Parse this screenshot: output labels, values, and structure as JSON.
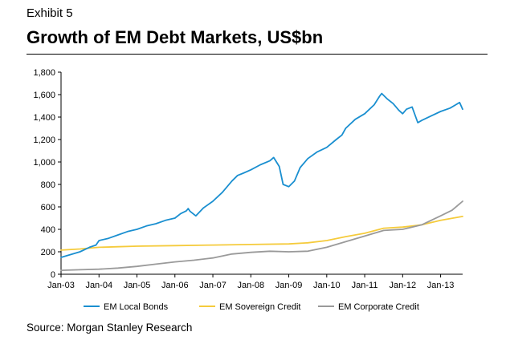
{
  "header": {
    "exhibit": "Exhibit 5",
    "title": "Growth of EM Debt Markets, US$bn"
  },
  "source": "Source: Morgan Stanley Research",
  "chart_data": {
    "type": "line",
    "title": "Growth of EM Debt Markets, US$bn",
    "xlabel": "",
    "ylabel": "",
    "ylim": [
      0,
      1800
    ],
    "yticks": [
      0,
      200,
      400,
      600,
      800,
      1000,
      1200,
      1400,
      1600,
      1800
    ],
    "ytick_labels": [
      "0",
      "200",
      "400",
      "600",
      "800",
      "1,000",
      "1,200",
      "1,400",
      "1,600",
      "1,800"
    ],
    "xlim": [
      2003.0,
      2013.58
    ],
    "xticks": [
      2003,
      2004,
      2005,
      2006,
      2007,
      2008,
      2009,
      2010,
      2011,
      2012,
      2013
    ],
    "xtick_labels": [
      "Jan-03",
      "Jan-04",
      "Jan-05",
      "Jan-06",
      "Jan-07",
      "Jan-08",
      "Jan-09",
      "Jan-10",
      "Jan-11",
      "Jan-12",
      "Jan-13"
    ],
    "legend_position": "bottom",
    "series": [
      {
        "name": "EM Local Bonds",
        "color": "#1a8fd0",
        "x": [
          2003.0,
          2003.25,
          2003.5,
          2003.75,
          2003.92,
          2004.0,
          2004.25,
          2004.5,
          2004.75,
          2005.0,
          2005.25,
          2005.5,
          2005.75,
          2006.0,
          2006.15,
          2006.3,
          2006.35,
          2006.4,
          2006.55,
          2006.75,
          2007.0,
          2007.25,
          2007.5,
          2007.65,
          2007.8,
          2008.0,
          2008.25,
          2008.5,
          2008.6,
          2008.75,
          2008.85,
          2009.0,
          2009.15,
          2009.3,
          2009.5,
          2009.75,
          2010.0,
          2010.25,
          2010.4,
          2010.5,
          2010.75,
          2011.0,
          2011.25,
          2011.4,
          2011.45,
          2011.6,
          2011.75,
          2011.9,
          2012.0,
          2012.1,
          2012.25,
          2012.4,
          2012.5,
          2012.75,
          2013.0,
          2013.25,
          2013.4,
          2013.5,
          2013.58
        ],
        "y": [
          150,
          175,
          200,
          240,
          260,
          300,
          320,
          350,
          380,
          400,
          430,
          450,
          480,
          500,
          540,
          565,
          585,
          560,
          520,
          590,
          650,
          730,
          830,
          880,
          900,
          930,
          975,
          1010,
          1040,
          960,
          800,
          780,
          830,
          950,
          1030,
          1090,
          1130,
          1200,
          1240,
          1300,
          1380,
          1430,
          1510,
          1590,
          1610,
          1560,
          1520,
          1460,
          1430,
          1470,
          1490,
          1350,
          1370,
          1410,
          1450,
          1480,
          1510,
          1530,
          1470
        ]
      },
      {
        "name": "EM Sovereign Credit",
        "color": "#f5cb3c",
        "x": [
          2003.0,
          2003.5,
          2004.0,
          2004.5,
          2005.0,
          2006.0,
          2007.0,
          2008.0,
          2009.0,
          2009.5,
          2010.0,
          2010.5,
          2011.0,
          2011.5,
          2012.0,
          2012.5,
          2013.0,
          2013.58
        ],
        "y": [
          215,
          225,
          240,
          245,
          250,
          255,
          260,
          265,
          270,
          280,
          300,
          335,
          365,
          410,
          420,
          440,
          480,
          515
        ]
      },
      {
        "name": "EM Corporate Credit",
        "color": "#9a9a9a",
        "x": [
          2003.0,
          2003.5,
          2004.0,
          2004.5,
          2005.0,
          2005.5,
          2006.0,
          2006.5,
          2007.0,
          2007.5,
          2008.0,
          2008.5,
          2009.0,
          2009.5,
          2010.0,
          2010.5,
          2011.0,
          2011.5,
          2012.0,
          2012.5,
          2013.0,
          2013.3,
          2013.58
        ],
        "y": [
          35,
          40,
          45,
          55,
          70,
          90,
          110,
          125,
          145,
          180,
          195,
          205,
          200,
          205,
          240,
          290,
          340,
          390,
          400,
          440,
          520,
          570,
          650
        ]
      }
    ]
  }
}
